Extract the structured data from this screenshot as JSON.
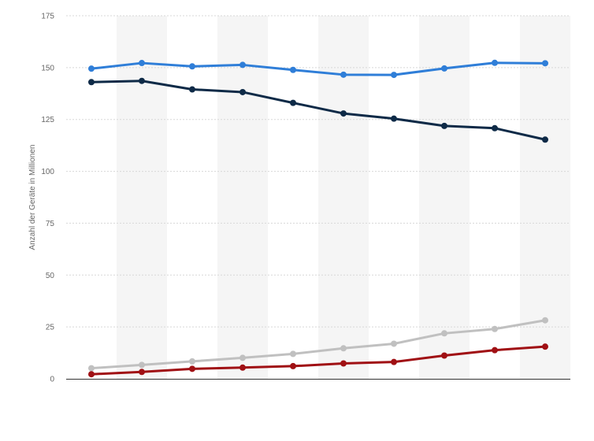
{
  "chart_data": {
    "type": "line",
    "title": "",
    "xlabel": "",
    "ylabel": "Anzahl der Geräte in Millionen",
    "ylim": [
      0,
      175
    ],
    "yticks": [
      0,
      25,
      50,
      75,
      100,
      125,
      150,
      175
    ],
    "grid": true,
    "legend": "none",
    "x": [
      1,
      2,
      3,
      4,
      5,
      6,
      7,
      8,
      9,
      10
    ],
    "series": [
      {
        "color": "#2f7ed8",
        "values": [
          149.5,
          152.2,
          150.6,
          151.3,
          148.9,
          146.6,
          146.5,
          149.6,
          152.3,
          152.1
        ]
      },
      {
        "color": "#0e2a47",
        "values": [
          143.0,
          143.6,
          139.5,
          138.2,
          133.0,
          127.9,
          125.4,
          121.9,
          120.8,
          115.3
        ]
      },
      {
        "color": "#c0c0c0",
        "values": [
          5.1,
          6.7,
          8.4,
          10.1,
          12.0,
          14.7,
          16.9,
          21.9,
          24.0,
          28.2
        ]
      },
      {
        "color": "#a01014",
        "values": [
          2.2,
          3.3,
          4.8,
          5.4,
          6.1,
          7.4,
          8.1,
          11.2,
          13.8,
          15.5
        ]
      }
    ]
  }
}
